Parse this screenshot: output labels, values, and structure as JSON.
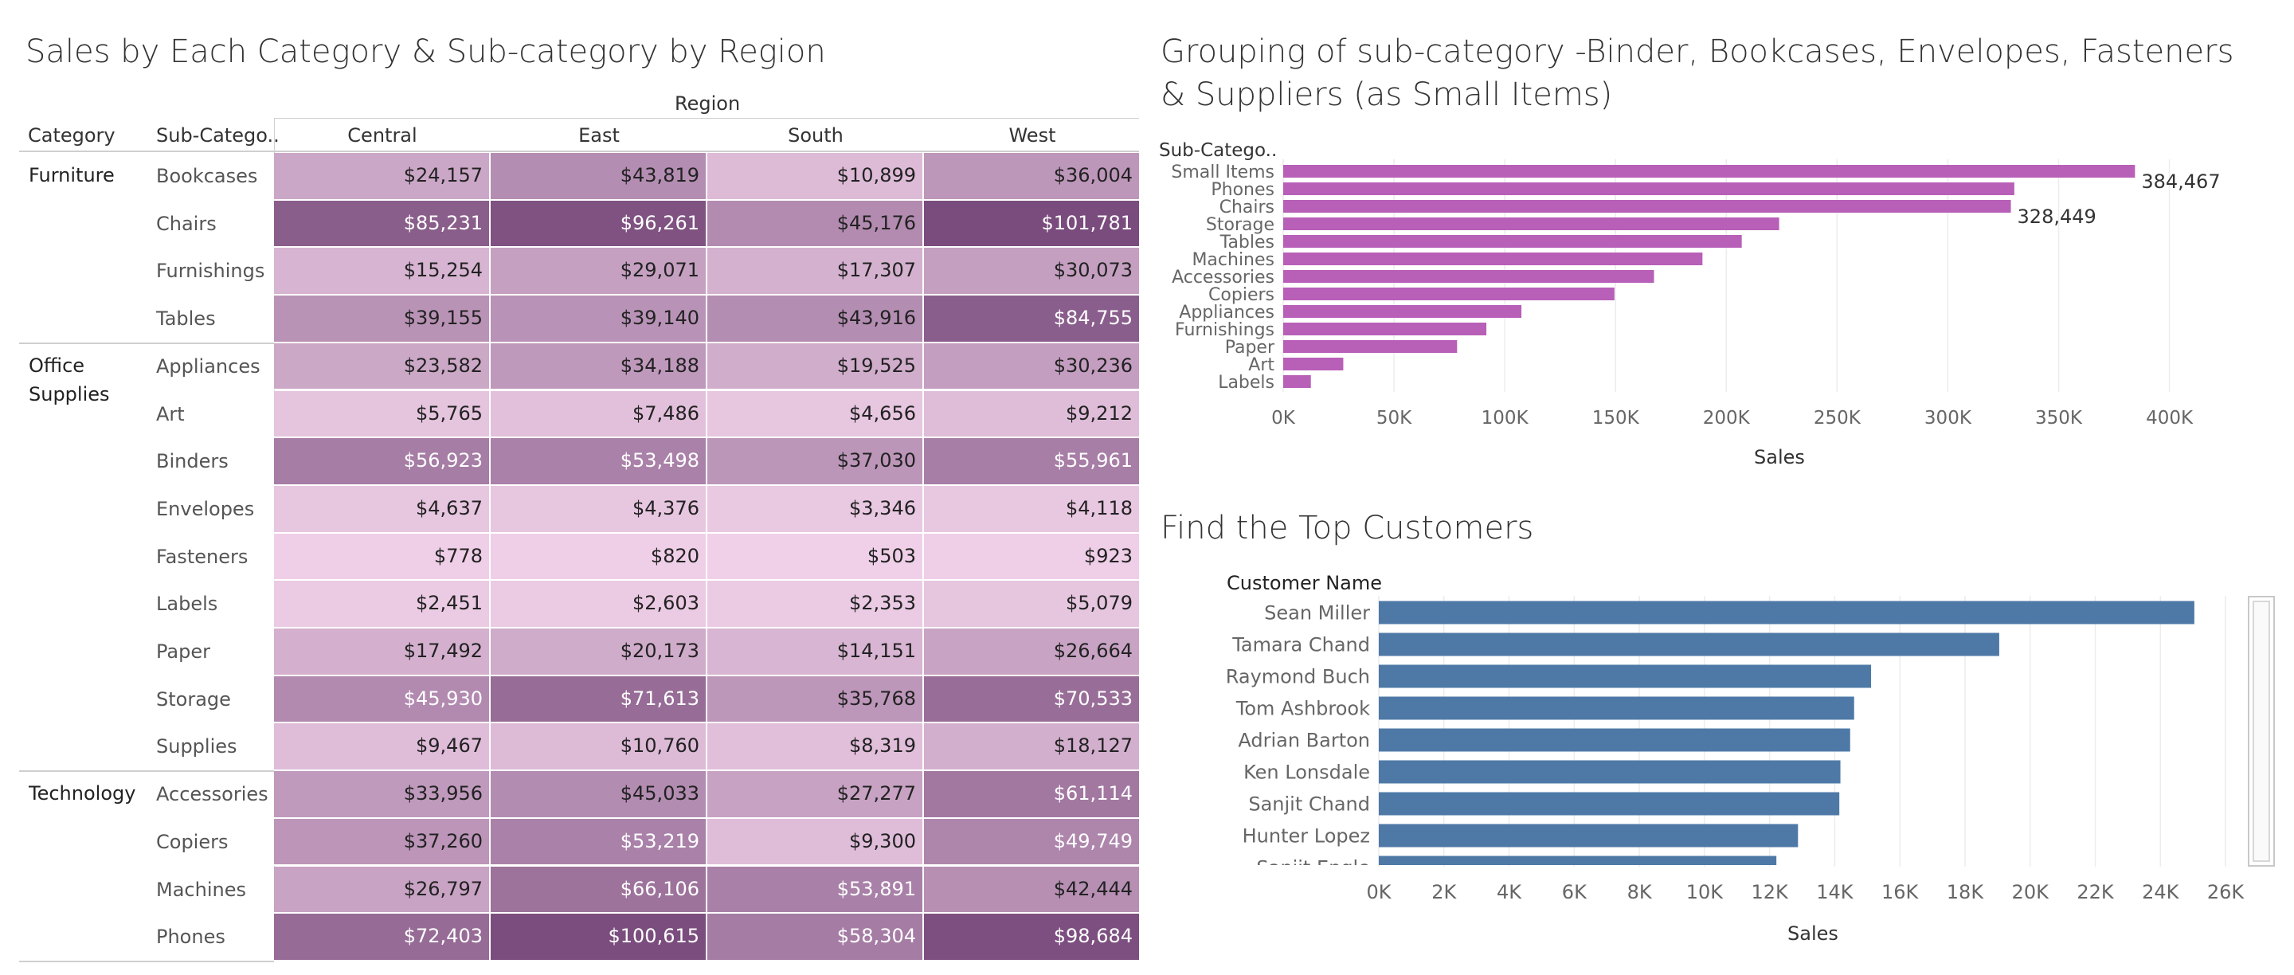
{
  "titles": {
    "heat": "Sales by Each Category & Sub-category by Region",
    "sub": "Grouping of sub-category -Binder, Bookcases, Envelopes, Fasteners & Suppliers (as Small Items)",
    "cust": "Find the Top Customers"
  },
  "chart_data": [
    {
      "type": "heatmap",
      "title": "Sales by Each Category & Sub-category by Region",
      "header_region": "Region",
      "header_category": "Category",
      "header_subcategory": "Sub-Catego..",
      "regions": [
        "Central",
        "East",
        "South",
        "West"
      ],
      "groups": [
        {
          "category": "Furniture",
          "rows": [
            {
              "sub": "Bookcases",
              "values": [
                "$24,157",
                "$43,819",
                "$10,899",
                "$36,004"
              ]
            },
            {
              "sub": "Chairs",
              "values": [
                "$85,231",
                "$96,261",
                "$45,176",
                "$101,781"
              ]
            },
            {
              "sub": "Furnishings",
              "values": [
                "$15,254",
                "$29,071",
                "$17,307",
                "$30,073"
              ]
            },
            {
              "sub": "Tables",
              "values": [
                "$39,155",
                "$39,140",
                "$43,916",
                "$84,755"
              ]
            }
          ]
        },
        {
          "category": "Office Supplies",
          "rows": [
            {
              "sub": "Appliances",
              "values": [
                "$23,582",
                "$34,188",
                "$19,525",
                "$30,236"
              ]
            },
            {
              "sub": "Art",
              "values": [
                "$5,765",
                "$7,486",
                "$4,656",
                "$9,212"
              ]
            },
            {
              "sub": "Binders",
              "values": [
                "$56,923",
                "$53,498",
                "$37,030",
                "$55,961"
              ]
            },
            {
              "sub": "Envelopes",
              "values": [
                "$4,637",
                "$4,376",
                "$3,346",
                "$4,118"
              ]
            },
            {
              "sub": "Fasteners",
              "values": [
                "$778",
                "$820",
                "$503",
                "$923"
              ]
            },
            {
              "sub": "Labels",
              "values": [
                "$2,451",
                "$2,603",
                "$2,353",
                "$5,079"
              ]
            },
            {
              "sub": "Paper",
              "values": [
                "$17,492",
                "$20,173",
                "$14,151",
                "$26,664"
              ]
            },
            {
              "sub": "Storage",
              "values": [
                "$45,930",
                "$71,613",
                "$35,768",
                "$70,533"
              ]
            },
            {
              "sub": "Supplies",
              "values": [
                "$9,467",
                "$10,760",
                "$8,319",
                "$18,127"
              ]
            }
          ]
        },
        {
          "category": "Technology",
          "rows": [
            {
              "sub": "Accessories",
              "values": [
                "$33,956",
                "$45,033",
                "$27,277",
                "$61,114"
              ]
            },
            {
              "sub": "Copiers",
              "values": [
                "$37,260",
                "$53,219",
                "$9,300",
                "$49,749"
              ]
            },
            {
              "sub": "Machines",
              "values": [
                "$26,797",
                "$66,106",
                "$53,891",
                "$42,444"
              ]
            },
            {
              "sub": "Phones",
              "values": [
                "$72,403",
                "$100,615",
                "$58,304",
                "$98,684"
              ]
            }
          ]
        }
      ],
      "color_light": "#f0d0e8",
      "color_dark": "#7a4c7d"
    },
    {
      "type": "bar",
      "orientation": "horizontal",
      "title": "Grouping of sub-category -Binder, Bookcases, Envelopes, Fasteners & Suppliers (as Small Items)",
      "ylabel": "Sub-Catego..",
      "xlabel": "Sales",
      "categories": [
        "Small Items",
        "Phones",
        "Chairs",
        "Storage",
        "Tables",
        "Machines",
        "Accessories",
        "Copiers",
        "Appliances",
        "Furnishings",
        "Paper",
        "Art",
        "Labels"
      ],
      "values": [
        384467,
        330007,
        328449,
        223844,
        206966,
        189239,
        167380,
        149528,
        107532,
        91705,
        78479,
        27119,
        12486
      ],
      "data_labels": [
        {
          "category": "Small Items",
          "text": "384,467"
        },
        {
          "category": "Chairs",
          "text": "328,449"
        }
      ],
      "xticks": [
        "0K",
        "50K",
        "100K",
        "150K",
        "200K",
        "250K",
        "300K",
        "350K",
        "400K"
      ],
      "xlim": [
        0,
        430000
      ],
      "color": "#b85fb8",
      "grid": true
    },
    {
      "type": "bar",
      "orientation": "horizontal",
      "title": "Find the Top Customers",
      "ylabel": "Customer Name",
      "xlabel": "Sales",
      "categories": [
        "Sean Miller",
        "Tamara Chand",
        "Raymond Buch",
        "Tom Ashbrook",
        "Adrian Barton",
        "Ken Lonsdale",
        "Sanjit Chand",
        "Hunter Lopez",
        "Sanjit Engle"
      ],
      "values": [
        25043,
        19052,
        15117,
        14596,
        14474,
        14175,
        14142,
        12873,
        12209
      ],
      "xticks": [
        "0K",
        "2K",
        "4K",
        "6K",
        "8K",
        "10K",
        "12K",
        "14K",
        "16K",
        "18K",
        "20K",
        "22K",
        "24K",
        "26K"
      ],
      "xlim": [
        0,
        26000
      ],
      "color": "#4e79a7",
      "grid": true
    }
  ]
}
